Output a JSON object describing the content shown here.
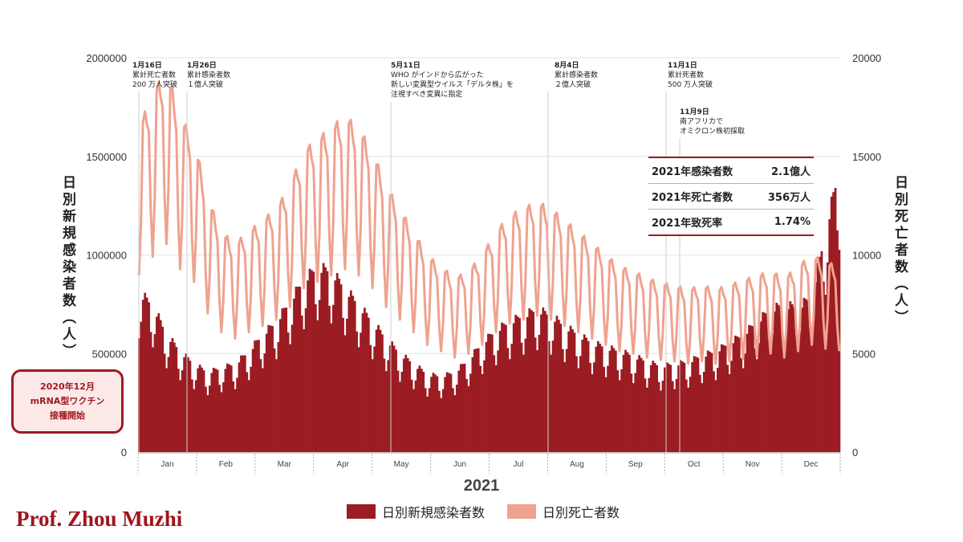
{
  "chart_data": {
    "type": "bar+line",
    "xlabel": "2021",
    "ylabel_left": "日別新規感染者数（人）",
    "ylabel_right": "日別死亡者数（人）",
    "ylim_left": [
      0,
      2000000
    ],
    "ylim_right": [
      0,
      20000
    ],
    "yticks_left": [
      "0",
      "500000",
      "1000000",
      "1500000",
      "2000000"
    ],
    "yticks_right": [
      "0",
      "5000",
      "10000",
      "15000",
      "20000"
    ],
    "months": [
      "Jan",
      "Feb",
      "Mar",
      "Apr",
      "May",
      "Jun",
      "Jul",
      "Aug",
      "Sep",
      "Oct",
      "Nov",
      "Dec"
    ],
    "grid": true,
    "legend_position": "bottom",
    "series": [
      {
        "name": "日別新規感染者数",
        "type": "bar",
        "axis": "left",
        "color": "#9b1c22",
        "weekly_values": [
          760000,
          700000,
          560000,
          480000,
          420000,
          380000,
          400000,
          420000,
          480000,
          560000,
          620000,
          720000,
          820000,
          880000,
          860000,
          780000,
          700000,
          620000,
          540000,
          470000,
          420000,
          370000,
          360000,
          380000,
          440000,
          520000,
          580000,
          620000,
          650000,
          680000,
          650000,
          600000,
          560000,
          520000,
          500000,
          480000,
          460000,
          430000,
          410000,
          420000,
          430000,
          460000,
          480000,
          520000,
          560000,
          620000,
          680000,
          700000,
          690000,
          740000,
          1050000,
          1350000
        ]
      },
      {
        "name": "日別死亡者数",
        "type": "line",
        "axis": "right",
        "color": "#efa28f",
        "weekly_values": [
          14000,
          15500,
          16500,
          14500,
          13500,
          11000,
          9500,
          9000,
          9500,
          10000,
          10500,
          11500,
          13000,
          13500,
          14000,
          14500,
          14000,
          13000,
          11500,
          10500,
          9500,
          8500,
          8000,
          7500,
          7800,
          8500,
          9500,
          10200,
          10500,
          10800,
          10500,
          10000,
          9500,
          9000,
          8500,
          8000,
          7800,
          7500,
          7300,
          7200,
          7000,
          7200,
          7000,
          7200,
          7400,
          7600,
          7800,
          7500,
          8000,
          8500,
          8200,
          8000
        ]
      }
    ],
    "annotations": [
      {
        "date": "1月16日",
        "lines": [
          "累計死亡者数",
          "200 万人突破"
        ]
      },
      {
        "date": "1月26日",
        "lines": [
          "累計感染者数",
          "１億人突破"
        ]
      },
      {
        "date": "5月11日",
        "lines": [
          "WHO がインドから広がった",
          "新しい変異型ウイルス「デルタ株」を",
          "注視すべき変異に指定"
        ]
      },
      {
        "date": "8月4日",
        "lines": [
          "累計感染者数",
          "２億人突破"
        ]
      },
      {
        "date": "11月1日",
        "lines": [
          "累計死者数",
          "500 万人突破"
        ]
      },
      {
        "date": "11月9日",
        "lines": [
          "南アフリカで",
          "オミクロン株初採取"
        ]
      }
    ]
  },
  "vaccine_box": [
    "2020年12月",
    "mRNA型ワクチン",
    "接種開始"
  ],
  "stats": [
    {
      "label": "2021年感染者数",
      "value": "2.1億人"
    },
    {
      "label": "2021年死亡者数",
      "value": "356万人"
    },
    {
      "label": "2021年致死率",
      "value": "1.74%"
    }
  ],
  "watermark": "Prof. Zhou Muzhi"
}
